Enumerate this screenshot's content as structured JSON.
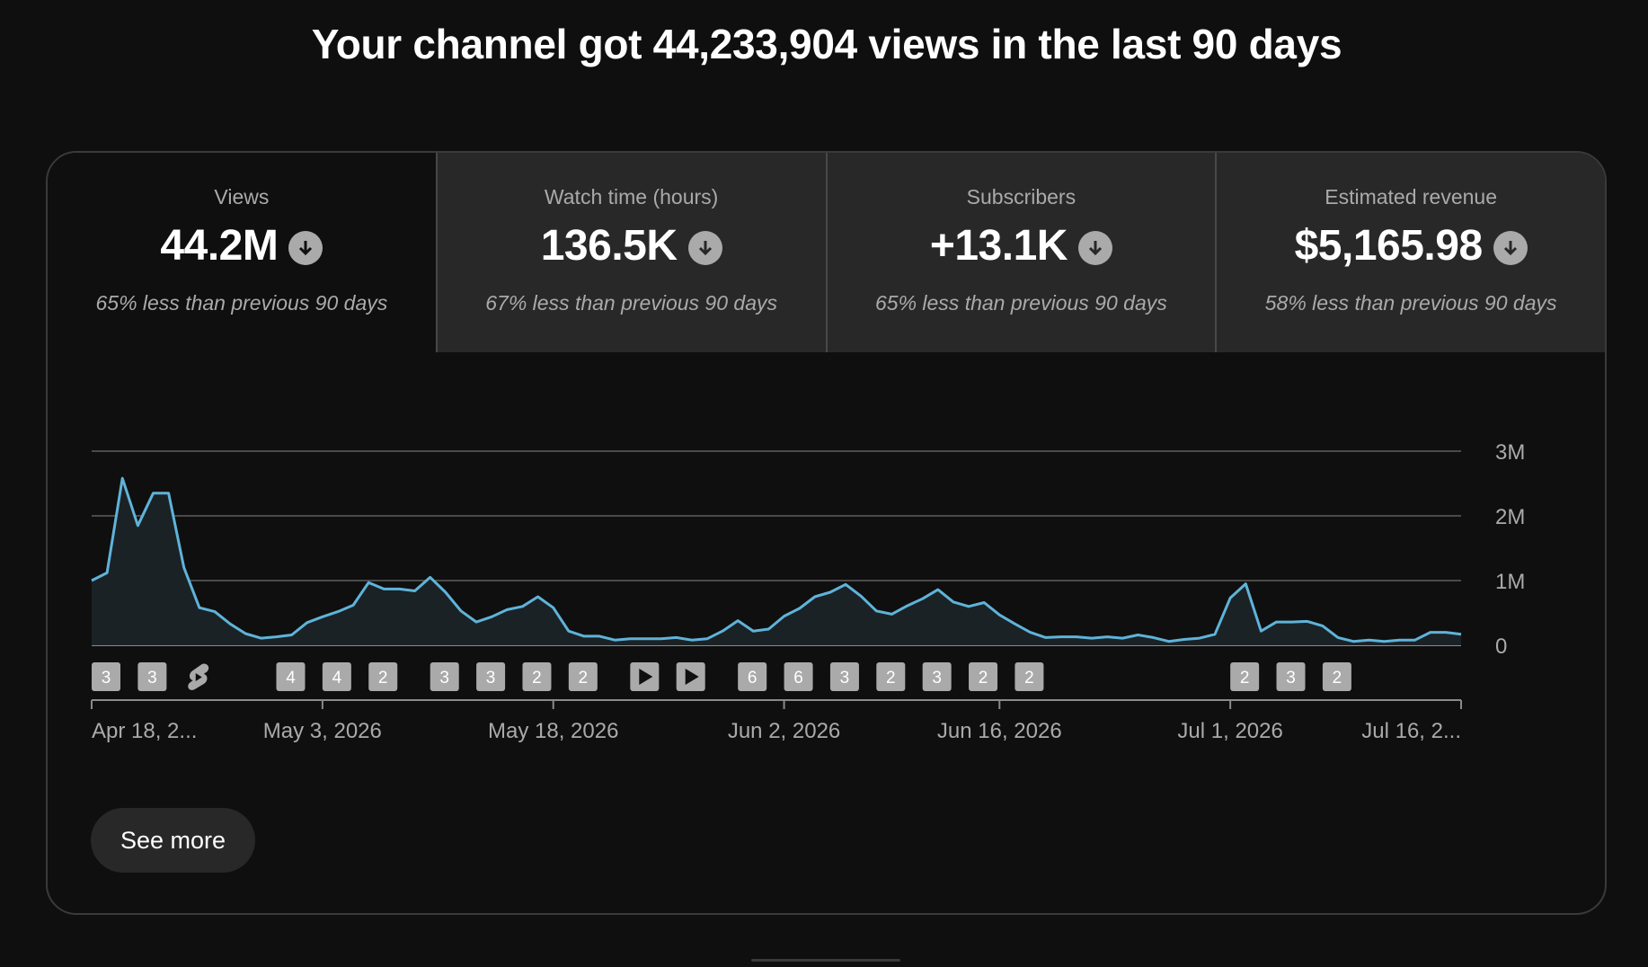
{
  "headline": "Your channel got 44,233,904 views in the last 90 days",
  "tabs": [
    {
      "label": "Views",
      "value": "44.2M",
      "sub": "65% less than previous 90 days",
      "trend_icon": "arrow-down-circle-icon",
      "selected": true
    },
    {
      "label": "Watch time (hours)",
      "value": "136.5K",
      "sub": "67% less than previous 90 days",
      "trend_icon": "arrow-down-circle-icon",
      "selected": false
    },
    {
      "label": "Subscribers",
      "value": "+13.1K",
      "sub": "65% less than previous 90 days",
      "trend_icon": "arrow-down-circle-icon",
      "selected": false
    },
    {
      "label": "Estimated revenue",
      "value": "$5,165.98",
      "sub": "58% less than previous 90 days",
      "trend_icon": "arrow-down-circle-icon",
      "selected": false
    }
  ],
  "see_more_label": "See more",
  "colors": {
    "line": "#5fb3d9",
    "background": "#0f0f0f",
    "tab_bg": "#282828",
    "grid": "#4a4a4a"
  },
  "chart_data": {
    "type": "line",
    "series": [
      {
        "values": [
          1.0,
          1.12,
          2.58,
          1.85,
          2.35,
          2.35,
          1.2,
          0.58,
          0.52,
          0.33,
          0.18,
          0.11,
          0.13,
          0.16,
          0.35,
          0.44,
          0.52,
          0.62,
          0.97,
          0.87,
          0.87,
          0.84,
          1.05,
          0.82,
          0.53,
          0.36,
          0.44,
          0.55,
          0.6,
          0.75,
          0.58,
          0.22,
          0.14,
          0.14,
          0.08,
          0.1,
          0.1,
          0.1,
          0.12,
          0.08,
          0.1,
          0.22,
          0.38,
          0.22,
          0.25,
          0.45,
          0.57,
          0.75,
          0.82,
          0.94,
          0.76,
          0.53,
          0.48,
          0.61,
          0.72,
          0.86,
          0.67,
          0.6,
          0.66,
          0.47,
          0.33,
          0.2,
          0.12,
          0.13,
          0.13,
          0.11,
          0.13,
          0.11,
          0.16,
          0.12,
          0.06,
          0.09,
          0.11,
          0.17,
          0.73,
          0.95,
          0.22,
          0.36,
          0.36,
          0.37,
          0.3,
          0.12,
          0.06,
          0.08,
          0.06,
          0.08,
          0.08,
          0.2,
          0.2,
          0.17
        ]
      }
    ],
    "x_start": "2026-04-18",
    "x_end": "2026-07-16",
    "ylim": [
      0,
      3000000
    ],
    "ytick_labels": [
      "0",
      "1M",
      "2M",
      "3M"
    ],
    "ytick_values": [
      0,
      1000000,
      2000000,
      3000000
    ],
    "xtick_labels": [
      "Apr 18, 2...",
      "May 3, 2026",
      "May 18, 2026",
      "Jun 2, 2026",
      "Jun 16, 2026",
      "Jul 1, 2026",
      "Jul 16, 2..."
    ],
    "xtick_dates": [
      "2026-04-18",
      "2026-05-03",
      "2026-05-18",
      "2026-06-02",
      "2026-06-16",
      "2026-07-01",
      "2026-07-16"
    ],
    "y_multiplier": 1000000,
    "grid": true,
    "markers": [
      {
        "date": "2026-04-18",
        "kind": "count",
        "label": "3"
      },
      {
        "date": "2026-04-21",
        "kind": "count",
        "label": "3"
      },
      {
        "date": "2026-04-24",
        "kind": "shorts"
      },
      {
        "date": "2026-04-30",
        "kind": "count",
        "label": "4"
      },
      {
        "date": "2026-05-03",
        "kind": "count",
        "label": "4"
      },
      {
        "date": "2026-05-06",
        "kind": "count",
        "label": "2"
      },
      {
        "date": "2026-05-10",
        "kind": "count",
        "label": "3"
      },
      {
        "date": "2026-05-13",
        "kind": "count",
        "label": "3"
      },
      {
        "date": "2026-05-16",
        "kind": "count",
        "label": "2"
      },
      {
        "date": "2026-05-19",
        "kind": "count",
        "label": "2"
      },
      {
        "date": "2026-05-23",
        "kind": "play"
      },
      {
        "date": "2026-05-26",
        "kind": "play"
      },
      {
        "date": "2026-05-30",
        "kind": "count",
        "label": "6"
      },
      {
        "date": "2026-06-02",
        "kind": "count",
        "label": "6"
      },
      {
        "date": "2026-06-05",
        "kind": "count",
        "label": "3"
      },
      {
        "date": "2026-06-08",
        "kind": "count",
        "label": "2"
      },
      {
        "date": "2026-06-11",
        "kind": "count",
        "label": "3"
      },
      {
        "date": "2026-06-14",
        "kind": "count",
        "label": "2"
      },
      {
        "date": "2026-06-17",
        "kind": "count",
        "label": "2"
      },
      {
        "date": "2026-07-01",
        "kind": "count",
        "label": "2"
      },
      {
        "date": "2026-07-04",
        "kind": "count",
        "label": "3"
      },
      {
        "date": "2026-07-07",
        "kind": "count",
        "label": "2"
      }
    ]
  }
}
